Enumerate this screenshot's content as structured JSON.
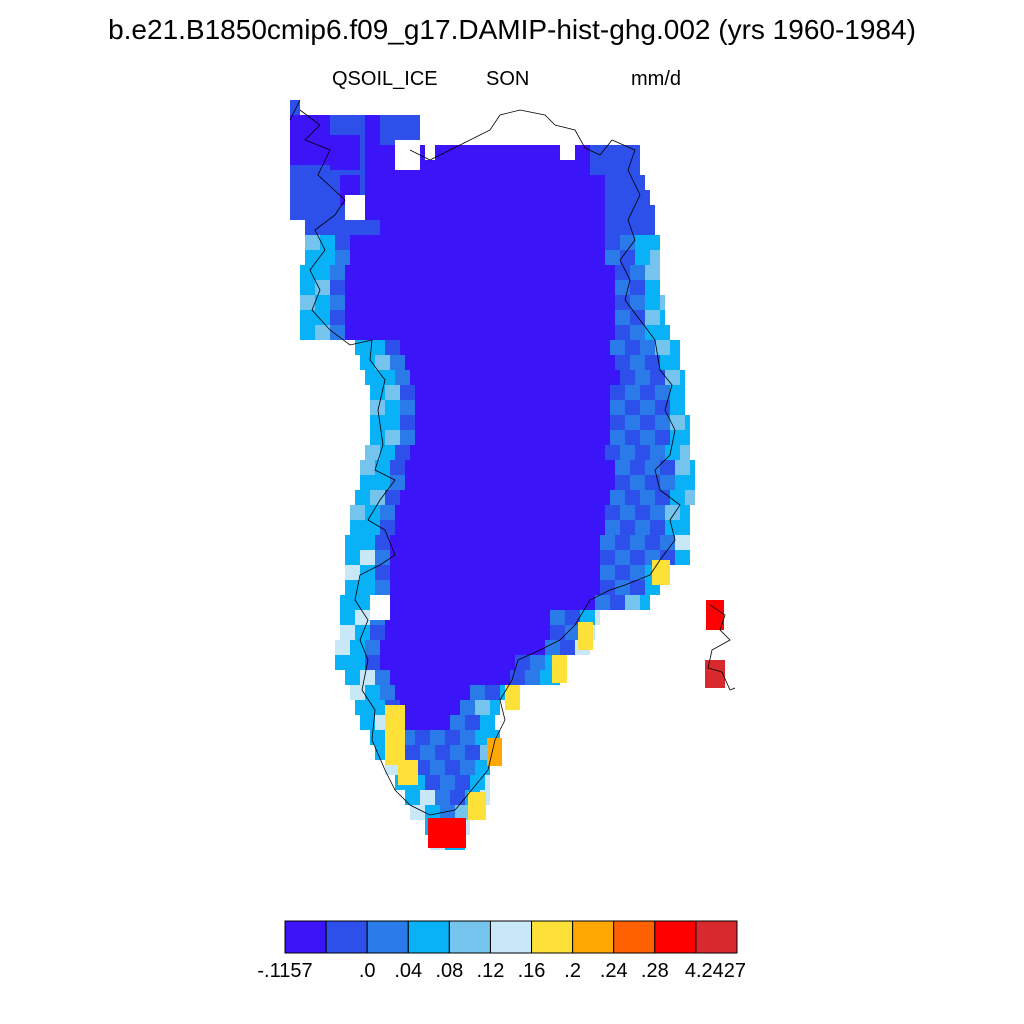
{
  "plot": {
    "title": "b.e21.B1850cmip6.f09_g17.DAMIP-hist-ghg.002 (yrs 1960-1984)",
    "variable": "QSOIL_ICE",
    "season": "SON",
    "units": "mm/d"
  },
  "colorbar": {
    "colors": [
      "#3c14f8",
      "#2d4fea",
      "#2a7be9",
      "#09b1f6",
      "#74c4ee",
      "#c8e7f7",
      "#fde139",
      "#ffa703",
      "#ff6100",
      "#ff0000",
      "#d7292e"
    ],
    "tick_labels": [
      "-.1157",
      ".0",
      ".04",
      ".08",
      ".12",
      ".16",
      ".2",
      ".24",
      ".28",
      "4.2427"
    ]
  },
  "map_colors": {
    "coast": "#000000",
    "missing": "#ffffff"
  }
}
